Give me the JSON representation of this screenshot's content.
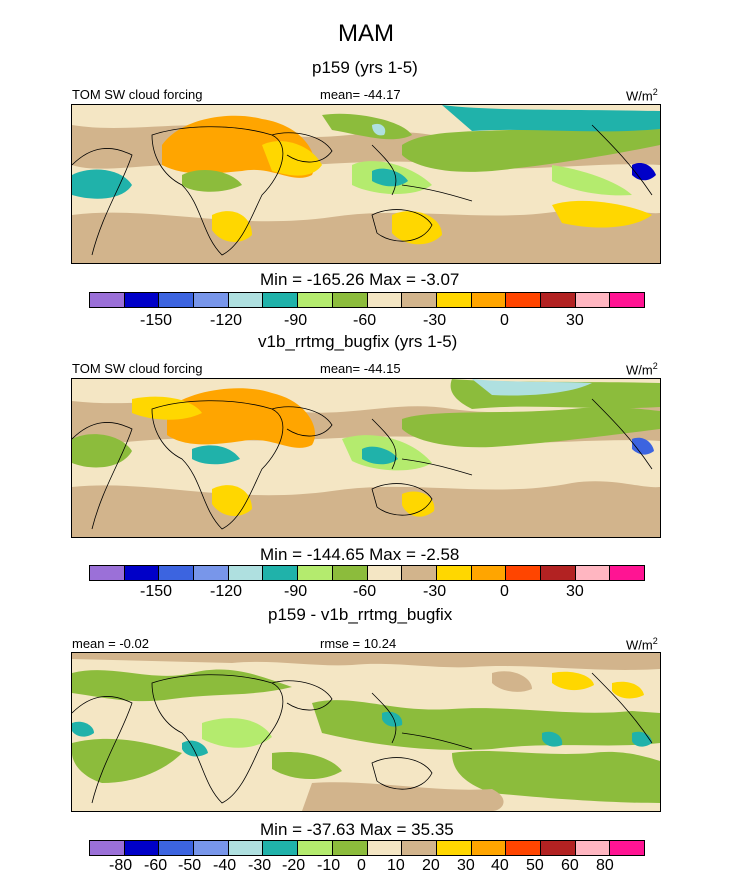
{
  "header": {
    "title": "MAM"
  },
  "colorbars": {
    "abs_colors": [
      "#9b70d8",
      "#0000c8",
      "#3c64e0",
      "#7896ea",
      "#afe0e0",
      "#20b2aa",
      "#b4eb6e",
      "#8cbc3c",
      "#f4e6c4",
      "#d2b48c",
      "#ffd700",
      "#ffa500",
      "#ff4500",
      "#b22222",
      "#ffb6c1",
      "#ff1493"
    ],
    "abs_ticks": [
      "-150",
      "-120",
      "-90",
      "-60",
      "-30",
      "0",
      "30"
    ],
    "diff_colors": [
      "#9b70d8",
      "#0000c8",
      "#3c64e0",
      "#7896ea",
      "#afe0e0",
      "#20b2aa",
      "#b4eb6e",
      "#8cbc3c",
      "#f4e6c4",
      "#d2b48c",
      "#ffd700",
      "#ffa500",
      "#ff4500",
      "#b22222",
      "#ffb6c1",
      "#ff1493"
    ],
    "diff_ticks": [
      "-80",
      "-60",
      "-50",
      "-40",
      "-30",
      "-20",
      "-10",
      "0",
      "10",
      "20",
      "30",
      "40",
      "50",
      "60",
      "80"
    ]
  },
  "chart_data": [
    {
      "type": "heatmap",
      "subtitle": "p159 (yrs 1-5)",
      "left_label": "TOM SW cloud forcing",
      "center_label": "mean= -44.17",
      "units": "W/m",
      "units_sup": "2",
      "min_max": "Min = -165.26 Max =  -3.07",
      "mean": -44.17,
      "min": -165.26,
      "max": -3.07,
      "colorbar_ticks": [
        "-150",
        "-120",
        "-90",
        "-60",
        "-30",
        "0",
        "30"
      ]
    },
    {
      "type": "heatmap",
      "subtitle": "v1b_rrtmg_bugfix (yrs 1-5)",
      "left_label": "TOM SW cloud forcing",
      "center_label": "mean= -44.15",
      "units": "W/m",
      "units_sup": "2",
      "min_max": "Min = -144.65 Max =  -2.58",
      "mean": -44.15,
      "min": -144.65,
      "max": -2.58,
      "colorbar_ticks": [
        "-150",
        "-120",
        "-90",
        "-60",
        "-30",
        "0",
        "30"
      ]
    },
    {
      "type": "heatmap",
      "subtitle": "p159 - v1b_rrtmg_bugfix",
      "left_label": "mean =  -0.02",
      "center_label": "rmse =  10.24",
      "units": "W/m",
      "units_sup": "2",
      "min_max": "Min = -37.63 Max =  35.35",
      "mean": -0.02,
      "rmse": 10.24,
      "min": -37.63,
      "max": 35.35,
      "colorbar_ticks": [
        "-80",
        "-60",
        "-50",
        "-40",
        "-30",
        "-20",
        "-10",
        "0",
        "10",
        "20",
        "30",
        "40",
        "50",
        "60",
        "80"
      ]
    }
  ]
}
